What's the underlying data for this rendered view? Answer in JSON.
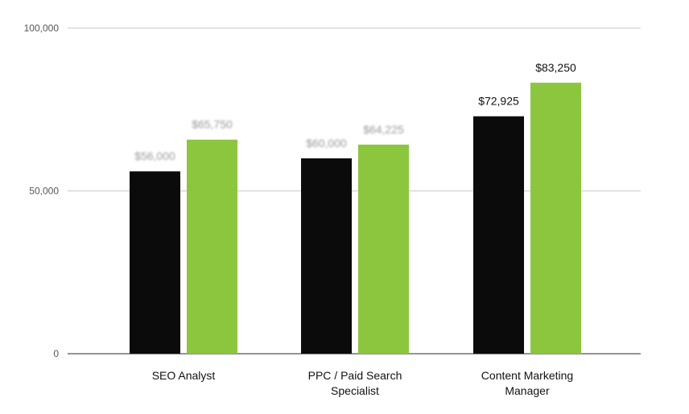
{
  "chart_data": {
    "type": "bar",
    "categories": [
      [
        "SEO Analyst"
      ],
      [
        "PPC / Paid Search",
        "Specialist"
      ],
      [
        "Content Marketing",
        "Manager"
      ]
    ],
    "series": [
      {
        "color": "#0b0b0b",
        "values": [
          56000,
          60000,
          72925
        ]
      },
      {
        "color": "#8cc63f",
        "values": [
          65750,
          64225,
          83250
        ]
      }
    ],
    "data_labels": [
      [
        "$56,000",
        "$60,000",
        "$72,925"
      ],
      [
        "$65,750",
        "$64,225",
        "$83,250"
      ]
    ],
    "blurred_labels": [
      [
        true,
        true,
        false
      ],
      [
        true,
        true,
        false
      ]
    ],
    "yticks": [
      {
        "value": 0,
        "label": "0"
      },
      {
        "value": 50000,
        "label": "50,000"
      },
      {
        "value": 100000,
        "label": "100,000"
      }
    ],
    "ylim": [
      0,
      100000
    ],
    "grid": true,
    "legend": "none",
    "title": "",
    "xlabel": "",
    "ylabel": ""
  }
}
